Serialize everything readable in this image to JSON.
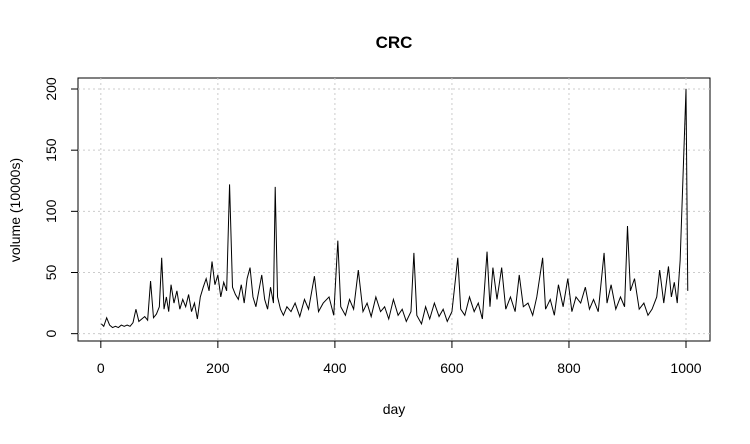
{
  "chart_data": {
    "type": "line",
    "title": "CRC",
    "x_label": "day",
    "y_label": "volume (10000s)",
    "x": [
      1,
      5,
      10,
      15,
      20,
      25,
      30,
      35,
      40,
      45,
      50,
      55,
      60,
      65,
      70,
      75,
      80,
      85,
      90,
      95,
      100,
      104,
      108,
      112,
      116,
      120,
      125,
      130,
      135,
      140,
      145,
      150,
      155,
      160,
      165,
      170,
      175,
      180,
      185,
      190,
      195,
      200,
      205,
      210,
      215,
      220,
      225,
      230,
      235,
      240,
      245,
      250,
      255,
      260,
      265,
      270,
      275,
      280,
      285,
      290,
      295,
      298,
      302,
      307,
      312,
      318,
      325,
      332,
      340,
      348,
      355,
      365,
      372,
      380,
      390,
      398,
      405,
      410,
      418,
      425,
      432,
      440,
      448,
      455,
      462,
      470,
      478,
      485,
      492,
      500,
      508,
      515,
      522,
      530,
      535,
      540,
      548,
      555,
      562,
      570,
      578,
      585,
      592,
      600,
      610,
      615,
      622,
      630,
      638,
      645,
      652,
      660,
      665,
      670,
      677,
      685,
      692,
      700,
      708,
      715,
      722,
      730,
      738,
      745,
      755,
      760,
      768,
      775,
      782,
      790,
      798,
      805,
      812,
      820,
      828,
      835,
      842,
      850,
      860,
      865,
      872,
      880,
      888,
      895,
      900,
      905,
      912,
      920,
      928,
      935,
      942,
      950,
      955,
      962,
      970,
      975,
      980,
      985,
      990,
      995,
      1000,
      1003
    ],
    "series": [
      {
        "color": "#000000",
        "values": [
          8,
          6,
          13,
          7,
          5,
          6,
          5,
          7,
          6,
          7,
          6,
          9,
          20,
          10,
          12,
          14,
          11,
          43,
          13,
          16,
          22,
          62,
          20,
          30,
          18,
          40,
          25,
          35,
          20,
          28,
          22,
          32,
          18,
          25,
          12,
          30,
          38,
          45,
          35,
          59,
          40,
          48,
          30,
          42,
          35,
          122,
          38,
          32,
          28,
          40,
          25,
          45,
          54,
          30,
          22,
          35,
          48,
          28,
          20,
          38,
          25,
          120,
          30,
          20,
          15,
          22,
          18,
          25,
          14,
          28,
          20,
          47,
          18,
          25,
          30,
          15,
          76,
          22,
          15,
          28,
          20,
          52,
          18,
          25,
          14,
          30,
          18,
          22,
          12,
          28,
          15,
          20,
          10,
          18,
          66,
          15,
          8,
          22,
          12,
          25,
          14,
          20,
          10,
          18,
          62,
          20,
          15,
          30,
          18,
          25,
          12,
          67,
          22,
          54,
          28,
          54,
          20,
          30,
          18,
          48,
          22,
          25,
          15,
          30,
          62,
          20,
          28,
          15,
          40,
          22,
          45,
          18,
          30,
          25,
          38,
          20,
          28,
          18,
          66,
          25,
          40,
          20,
          30,
          22,
          88,
          35,
          45,
          20,
          25,
          15,
          20,
          30,
          52,
          25,
          55,
          30,
          42,
          25,
          60,
          130,
          200,
          35
        ]
      }
    ],
    "xlim": [
      -39,
      1041
    ],
    "ylim": [
      -6,
      209
    ],
    "xticks": [
      0,
      200,
      400,
      600,
      800,
      1000
    ],
    "yticks": [
      0,
      50,
      100,
      150,
      200
    ],
    "grid": true
  }
}
